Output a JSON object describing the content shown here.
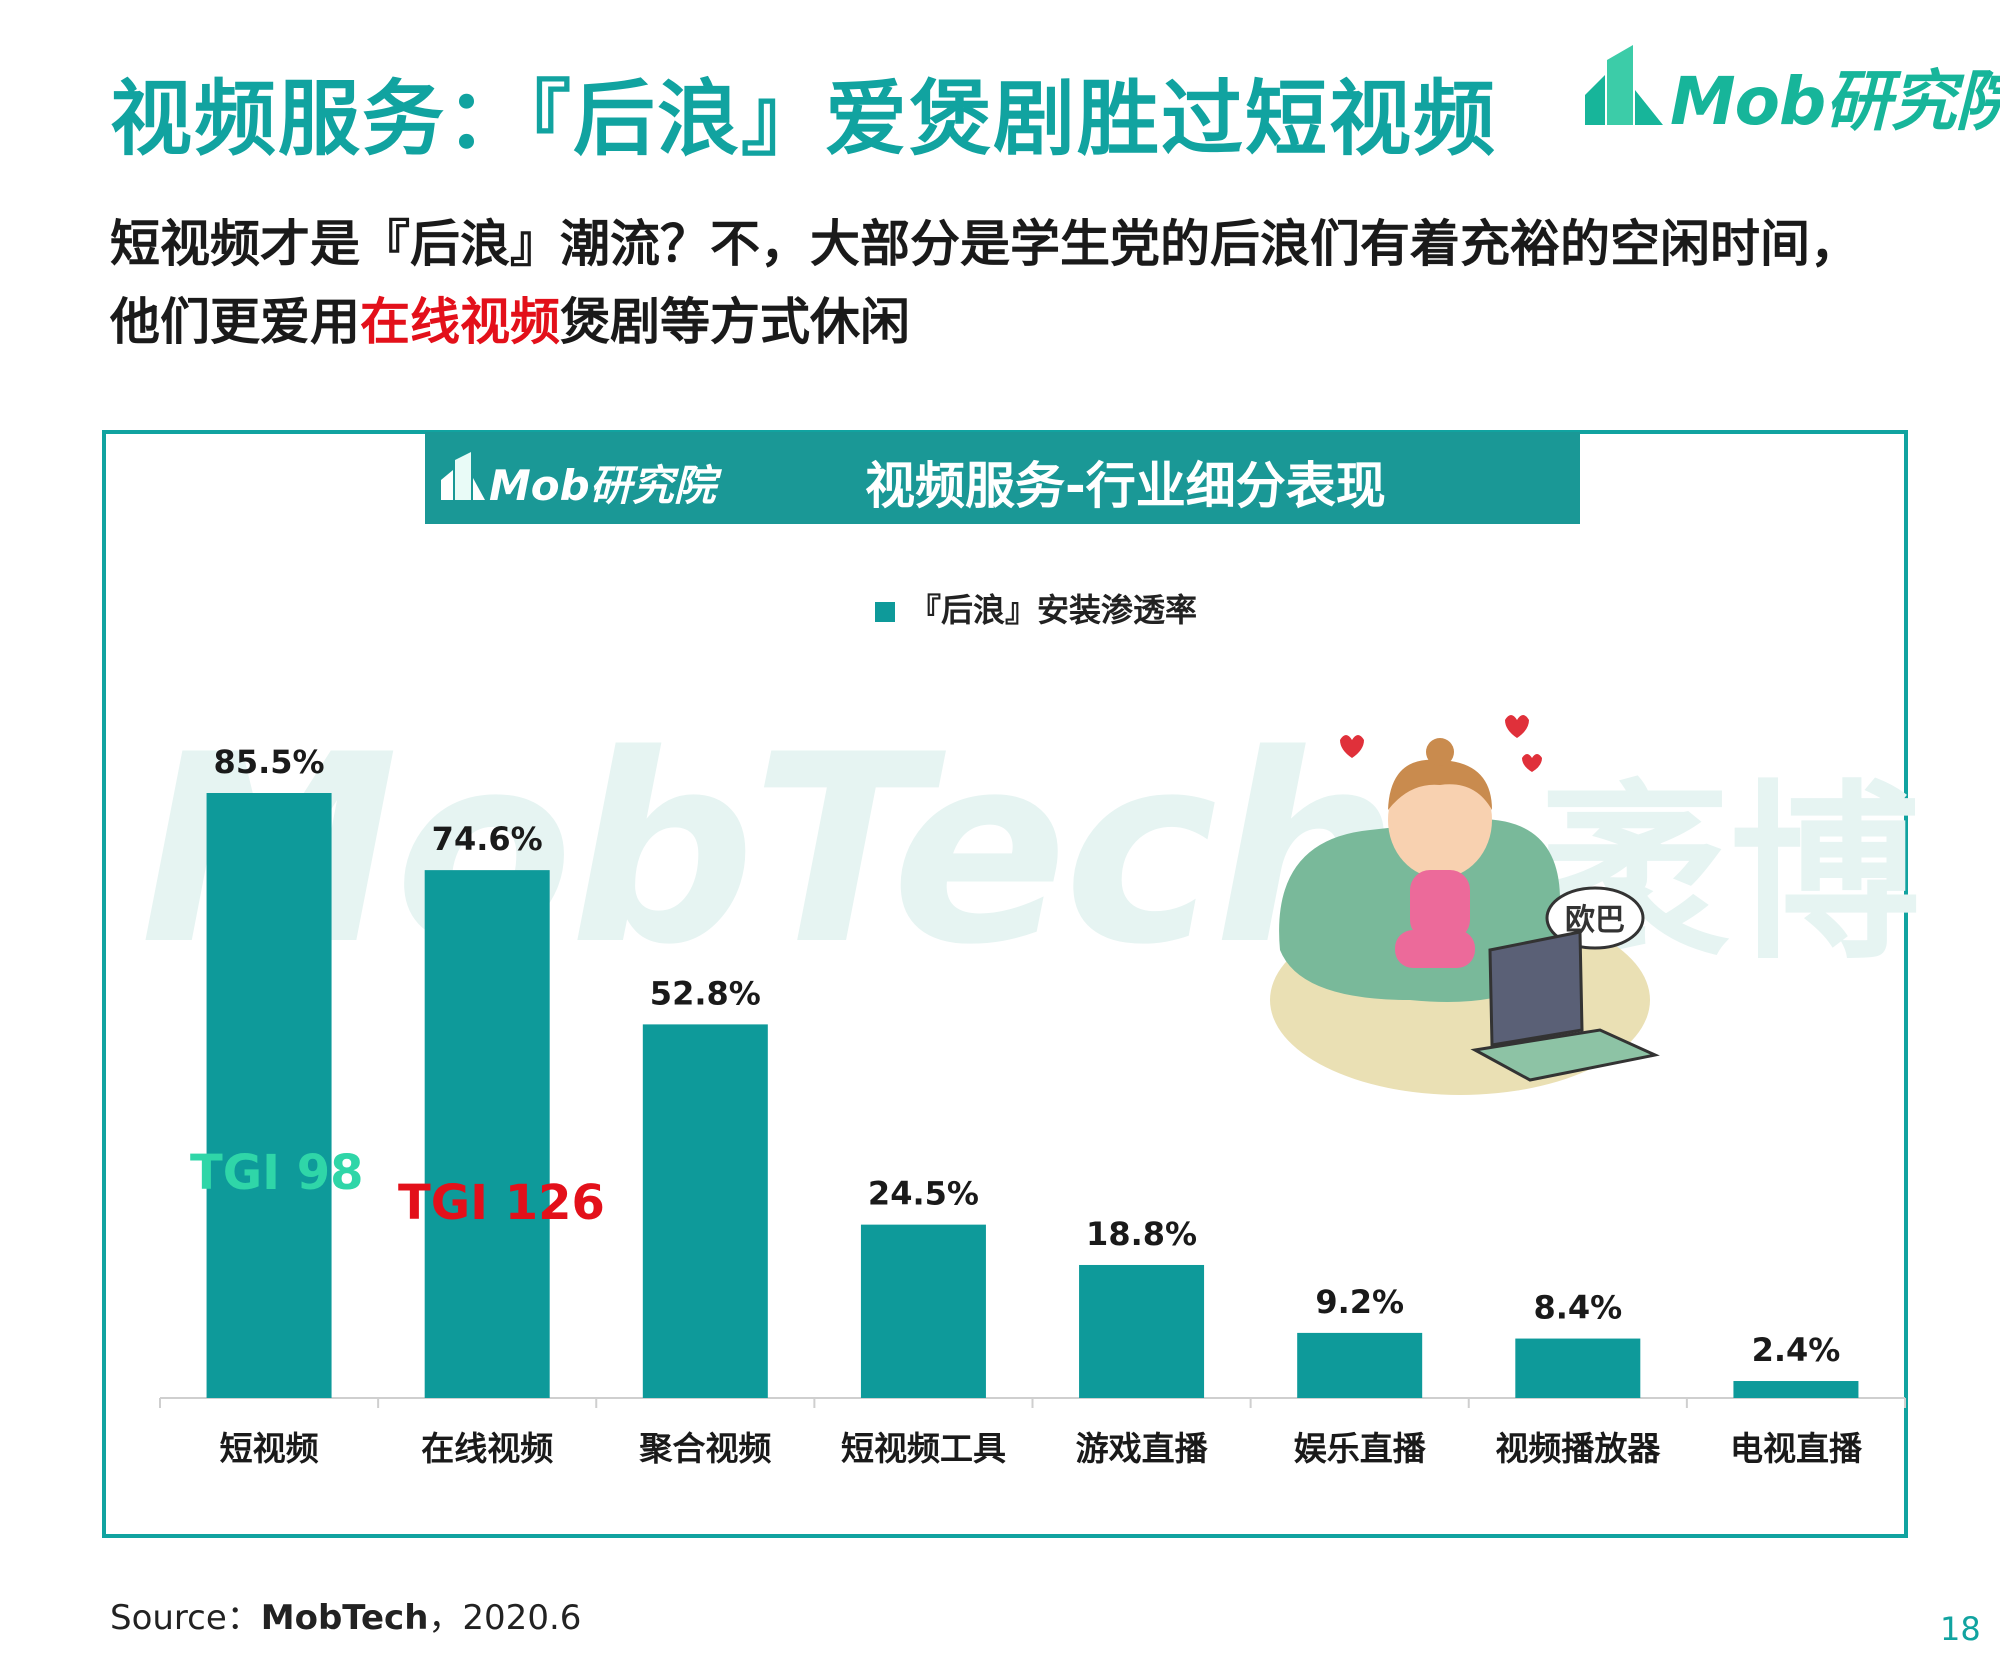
{
  "header": {
    "title": "视频服务：『后浪』爱煲剧胜过短视频",
    "logo_text": "Mob研究院"
  },
  "subtitle": {
    "line1": "短视频才是『后浪』潮流？不，大部分是学生党的后浪们有着充裕的空闲时间，",
    "line2_prefix": "他们更爱用",
    "line2_highlight": "在线视频",
    "line2_suffix": "煲剧等方式休闲"
  },
  "banner": {
    "logo_text": "Mob研究院",
    "title": "视频服务-行业细分表现"
  },
  "watermark": {
    "text": "MobTech",
    "cn_text": "袤博"
  },
  "chart_data": {
    "type": "bar",
    "categories": [
      "短视频",
      "在线视频",
      "聚合视频",
      "短视频工具",
      "游戏直播",
      "娱乐直播",
      "视频播放器",
      "电视直播"
    ],
    "series": [
      {
        "name": "『后浪』安装渗透率",
        "values": [
          85.5,
          74.6,
          52.8,
          24.5,
          18.8,
          9.2,
          8.4,
          2.4
        ],
        "labels": [
          "85.5%",
          "74.6%",
          "52.8%",
          "24.5%",
          "18.8%",
          "9.2%",
          "8.4%",
          "2.4%"
        ]
      }
    ],
    "ylim": [
      0,
      85.5
    ],
    "legend_position": "top-center",
    "grid": false,
    "bar_color": "#0e9a9a",
    "annotations": [
      "TGI 98",
      "TGI 126"
    ]
  },
  "annotations": {
    "tgi_short_video": "TGI 98",
    "tgi_online_video": "TGI 126"
  },
  "cartoon": {
    "speech_text": "欧巴"
  },
  "footer": {
    "source_label": "Source：",
    "source_name": "MobTech",
    "source_date": "，2020.6",
    "page_number": "18"
  },
  "colors": {
    "accent": "#11a3a0",
    "bar": "#0e9a9a",
    "highlight_red": "#e3101a",
    "tgi_green": "#2fd6a8"
  }
}
